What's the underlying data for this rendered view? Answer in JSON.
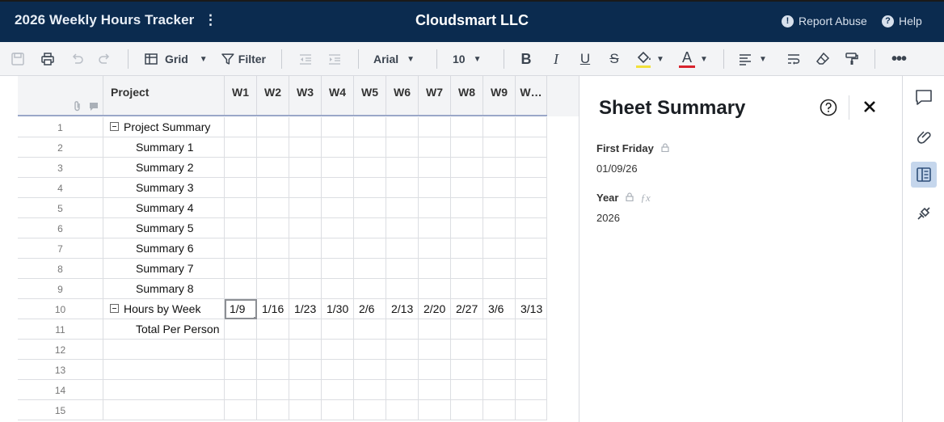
{
  "header": {
    "sheet_title": "2026 Weekly Hours Tracker",
    "menu_glyph": "⋮",
    "company": "Cloudsmart LLC",
    "report_abuse": "Report Abuse",
    "help": "Help"
  },
  "toolbar": {
    "view_label": "Grid",
    "filter_label": "Filter",
    "font_family": "Arial",
    "font_size": "10",
    "fill_color": "#f2e03a",
    "text_color": "#d9232d",
    "icons": [
      "save-icon",
      "print-icon",
      "undo-icon",
      "redo-icon",
      "grid-icon",
      "filter-icon",
      "outdent-icon",
      "indent-icon",
      "bold-icon",
      "italic-icon",
      "underline-icon",
      "strikethrough-icon",
      "fill-color-icon",
      "text-color-icon",
      "align-icon",
      "wrap-text-icon",
      "clear-format-icon",
      "format-painter-icon",
      "more-icon"
    ]
  },
  "grid": {
    "columns": [
      "Project",
      "W1",
      "W2",
      "W3",
      "W4",
      "W5",
      "W6",
      "W7",
      "W8",
      "W9",
      "W…"
    ],
    "rows": [
      {
        "num": "1",
        "project": "Project Summary",
        "parent": true,
        "cells": [
          "",
          "",
          "",
          "",
          "",
          "",
          "",
          "",
          "",
          ""
        ]
      },
      {
        "num": "2",
        "project": "Summary 1",
        "parent": false,
        "cells": [
          "",
          "",
          "",
          "",
          "",
          "",
          "",
          "",
          "",
          ""
        ]
      },
      {
        "num": "3",
        "project": "Summary 2",
        "parent": false,
        "cells": [
          "",
          "",
          "",
          "",
          "",
          "",
          "",
          "",
          "",
          ""
        ]
      },
      {
        "num": "4",
        "project": "Summary 3",
        "parent": false,
        "cells": [
          "",
          "",
          "",
          "",
          "",
          "",
          "",
          "",
          "",
          ""
        ]
      },
      {
        "num": "5",
        "project": "Summary 4",
        "parent": false,
        "cells": [
          "",
          "",
          "",
          "",
          "",
          "",
          "",
          "",
          "",
          ""
        ]
      },
      {
        "num": "6",
        "project": "Summary 5",
        "parent": false,
        "cells": [
          "",
          "",
          "",
          "",
          "",
          "",
          "",
          "",
          "",
          ""
        ]
      },
      {
        "num": "7",
        "project": "Summary 6",
        "parent": false,
        "cells": [
          "",
          "",
          "",
          "",
          "",
          "",
          "",
          "",
          "",
          ""
        ]
      },
      {
        "num": "8",
        "project": "Summary 7",
        "parent": false,
        "cells": [
          "",
          "",
          "",
          "",
          "",
          "",
          "",
          "",
          "",
          ""
        ]
      },
      {
        "num": "9",
        "project": "Summary 8",
        "parent": false,
        "cells": [
          "",
          "",
          "",
          "",
          "",
          "",
          "",
          "",
          "",
          ""
        ]
      },
      {
        "num": "10",
        "project": "Hours by Week",
        "parent": true,
        "cells": [
          "1/9",
          "1/16",
          "1/23",
          "1/30",
          "2/6",
          "2/13",
          "2/20",
          "2/27",
          "3/6",
          "3/13"
        ]
      },
      {
        "num": "11",
        "project": "Total Per Person",
        "parent": false,
        "cells": [
          "",
          "",
          "",
          "",
          "",
          "",
          "",
          "",
          "",
          ""
        ]
      },
      {
        "num": "12",
        "project": "",
        "parent": false,
        "cells": [
          "",
          "",
          "",
          "",
          "",
          "",
          "",
          "",
          "",
          ""
        ]
      },
      {
        "num": "13",
        "project": "",
        "parent": false,
        "cells": [
          "",
          "",
          "",
          "",
          "",
          "",
          "",
          "",
          "",
          ""
        ]
      },
      {
        "num": "14",
        "project": "",
        "parent": false,
        "cells": [
          "",
          "",
          "",
          "",
          "",
          "",
          "",
          "",
          "",
          ""
        ]
      },
      {
        "num": "15",
        "project": "",
        "parent": false,
        "cells": [
          "",
          "",
          "",
          "",
          "",
          "",
          "",
          "",
          "",
          ""
        ]
      }
    ]
  },
  "summary_panel": {
    "title": "Sheet Summary",
    "fields": [
      {
        "label": "First Friday",
        "value": "01/09/26",
        "locked": true,
        "formula": false
      },
      {
        "label": "Year",
        "value": "2026",
        "locked": true,
        "formula": true
      }
    ]
  },
  "right_rail": [
    "comments-icon",
    "attachments-icon",
    "sheet-summary-icon",
    "connections-icon"
  ]
}
